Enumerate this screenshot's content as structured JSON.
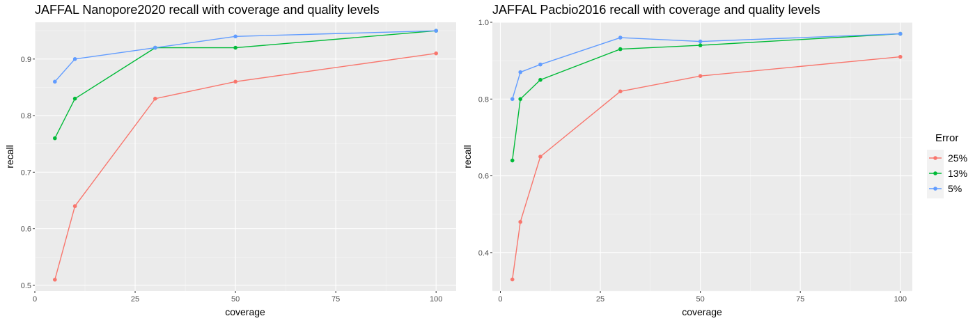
{
  "legend": {
    "title": "Error",
    "entries": [
      {
        "label": "25%",
        "color": "#F8766D"
      },
      {
        "label": "13%",
        "color": "#00BA38"
      },
      {
        "label": "5%",
        "color": "#619CFF"
      }
    ]
  },
  "chart_data": [
    {
      "type": "line",
      "title": "JAFFAL Nanopore2020 recall with coverage and quality levels",
      "xlabel": "coverage",
      "ylabel": "recall",
      "xlim": [
        0,
        105
      ],
      "ylim": [
        0.49,
        0.965
      ],
      "xticks": [
        0,
        25,
        50,
        75,
        100
      ],
      "xtick_labels": [
        "0",
        "25",
        "50",
        "75",
        "100"
      ],
      "yticks": [
        0.5,
        0.6,
        0.7,
        0.8,
        0.9
      ],
      "ytick_labels": [
        "0.5",
        "0.6",
        "0.7",
        "0.8",
        "0.9"
      ],
      "series": [
        {
          "name": "25%",
          "x": [
            5,
            10,
            30,
            50,
            100
          ],
          "y": [
            0.51,
            0.64,
            0.83,
            0.86,
            0.91
          ]
        },
        {
          "name": "13%",
          "x": [
            5,
            10,
            30,
            50,
            100
          ],
          "y": [
            0.76,
            0.83,
            0.92,
            0.92,
            0.95
          ]
        },
        {
          "name": "5%",
          "x": [
            5,
            10,
            30,
            50,
            100
          ],
          "y": [
            0.86,
            0.9,
            0.92,
            0.94,
            0.95
          ]
        }
      ]
    },
    {
      "type": "line",
      "title": "JAFFAL Pacbio2016 recall with coverage and quality levels",
      "xlabel": "coverage",
      "ylabel": "recall",
      "xlim": [
        -2,
        103
      ],
      "ylim": [
        0.3,
        1.0
      ],
      "xticks": [
        0,
        25,
        50,
        75,
        100
      ],
      "xtick_labels": [
        "0",
        "25",
        "50",
        "75",
        "100"
      ],
      "yticks": [
        0.4,
        0.6,
        0.8,
        1.0
      ],
      "ytick_labels": [
        "0.4",
        "0.6",
        "0.8",
        "1.0"
      ],
      "series": [
        {
          "name": "25%",
          "x": [
            3,
            5,
            10,
            30,
            50,
            100
          ],
          "y": [
            0.33,
            0.48,
            0.65,
            0.82,
            0.86,
            0.91
          ]
        },
        {
          "name": "13%",
          "x": [
            3,
            5,
            10,
            30,
            50,
            100
          ],
          "y": [
            0.64,
            0.8,
            0.85,
            0.93,
            0.94,
            0.97
          ]
        },
        {
          "name": "5%",
          "x": [
            3,
            5,
            10,
            30,
            50,
            100
          ],
          "y": [
            0.8,
            0.87,
            0.89,
            0.96,
            0.95,
            0.97
          ]
        }
      ]
    }
  ]
}
